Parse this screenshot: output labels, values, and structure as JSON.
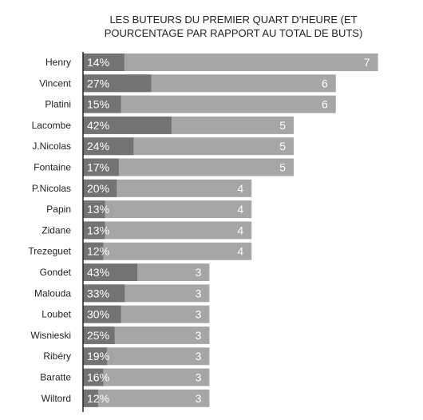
{
  "chart_data": {
    "type": "bar",
    "title": "LES BUTEURS DU PREMIER QUART D’HEURE (ET POURCENTAGE PAR RAPPORT AU TOTAL DE BUTS)",
    "orientation": "horizontal",
    "categories": [
      "Henry",
      "Vincent",
      "Platini",
      "Lacombe",
      "J.Nicolas",
      "Fontaine",
      "P.Nicolas",
      "Papin",
      "Zidane",
      "Trezeguet",
      "Gondet",
      "Malouda",
      "Loubet",
      "Wisnieski",
      "Ribéry",
      "Baratte",
      "Wiltord"
    ],
    "series": [
      {
        "values": [
          7,
          6,
          6,
          5,
          5,
          5,
          4,
          4,
          4,
          4,
          3,
          3,
          3,
          3,
          3,
          3,
          3
        ]
      },
      {
        "values": [
          14,
          27,
          15,
          42,
          24,
          17,
          20,
          13,
          13,
          12,
          43,
          33,
          30,
          25,
          19,
          16,
          12
        ],
        "unit": "%"
      }
    ],
    "labels": {
      "values": [
        "7",
        "6",
        "6",
        "5",
        "5",
        "5",
        "4",
        "4",
        "4",
        "4",
        "3",
        "3",
        "3",
        "3",
        "3",
        "3",
        "3"
      ],
      "percents": [
        "14%",
        "27%",
        "15%",
        "42%",
        "24%",
        "17%",
        "20%",
        "13%",
        "13%",
        "12%",
        "43%",
        "33%",
        "30%",
        "25%",
        "19%",
        "16%",
        "12%"
      ]
    },
    "xlim": [
      0,
      7
    ],
    "grid": false,
    "colors": {
      "bar": "#a6a6a6",
      "percent_bar": "#737373",
      "text": "#ffffff",
      "axis": "#222222"
    }
  }
}
